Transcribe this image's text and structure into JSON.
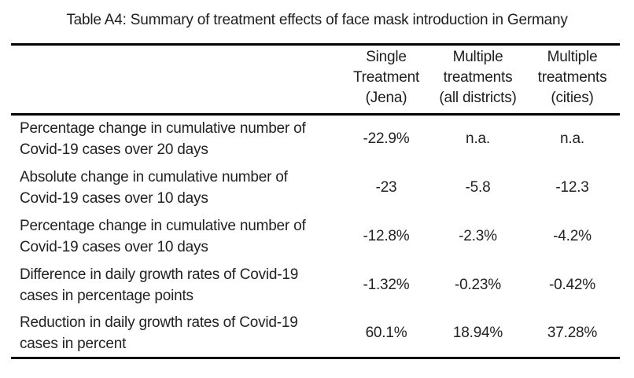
{
  "title": "Table A4: Summary of treatment effects of face mask introduction in Germany",
  "table": {
    "column_headers": [
      {
        "label": "Single Treatment (Jena)",
        "lines": [
          "Single",
          "Treatment",
          "(Jena)"
        ]
      },
      {
        "label": "Multiple treatments (all districts)",
        "lines": [
          "Multiple",
          "treatments",
          "(all districts)"
        ]
      },
      {
        "label": "Multiple treatments (cities)",
        "lines": [
          "Multiple",
          "treatments",
          "(cities)"
        ]
      }
    ],
    "rows": [
      {
        "label_lines": [
          "Percentage change in cumulative number of",
          "Covid-19 cases over 20 days"
        ],
        "values": [
          "-22.9%",
          "n.a.",
          "n.a."
        ]
      },
      {
        "label_lines": [
          "Absolute change in cumulative number of",
          "Covid-19 cases over 10 days"
        ],
        "values": [
          "-23",
          "-5.8",
          "-12.3"
        ]
      },
      {
        "label_lines": [
          "Percentage change in cumulative number of",
          "Covid-19 cases over 10 days"
        ],
        "values": [
          "-12.8%",
          "-2.3%",
          "-4.2%"
        ]
      },
      {
        "label_lines": [
          "Difference in daily growth rates of Covid-19",
          "cases in percentage points"
        ],
        "values": [
          "-1.32%",
          "-0.23%",
          "-0.42%"
        ]
      },
      {
        "label_lines": [
          "Reduction in daily growth rates of Covid-19",
          "cases in percent"
        ],
        "values": [
          "60.1%",
          "18.94%",
          "37.28%"
        ]
      }
    ]
  },
  "colors": {
    "text": "#222222",
    "rule": "#000000",
    "background": "#ffffff"
  }
}
